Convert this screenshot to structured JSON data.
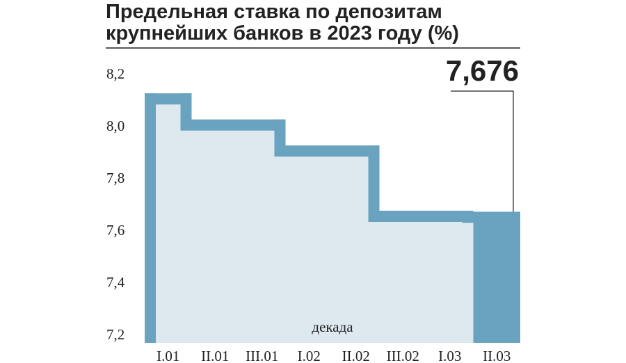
{
  "chart_data": {
    "type": "step-area",
    "title": "Предельная ставка по депозитам крупнейших банков в 2023 году (%)",
    "x_label": "декада",
    "categories": [
      "I.01",
      "II.01",
      "III.01",
      "I.02",
      "II.02",
      "III.02",
      "I.03",
      "II.03"
    ],
    "values": [
      8.13,
      8.03,
      8.03,
      7.93,
      7.93,
      7.68,
      7.68,
      7.676
    ],
    "value_labels": [
      null,
      null,
      null,
      null,
      null,
      null,
      null,
      "7,676"
    ],
    "color": "#6aa3bf",
    "fill_color": "#dde8ef",
    "highlight_color": "#6aa3bf",
    "ylim": [
      7.2,
      8.2
    ],
    "yticks": [
      {
        "value": 7.2,
        "label": "7,2"
      },
      {
        "value": 7.4,
        "label": "7,4"
      },
      {
        "value": 7.6,
        "label": "7,6"
      },
      {
        "value": 7.8,
        "label": "7,8"
      },
      {
        "value": 8.0,
        "label": "8,0"
      },
      {
        "value": 8.2,
        "label": "8,2"
      }
    ],
    "grid": false
  }
}
